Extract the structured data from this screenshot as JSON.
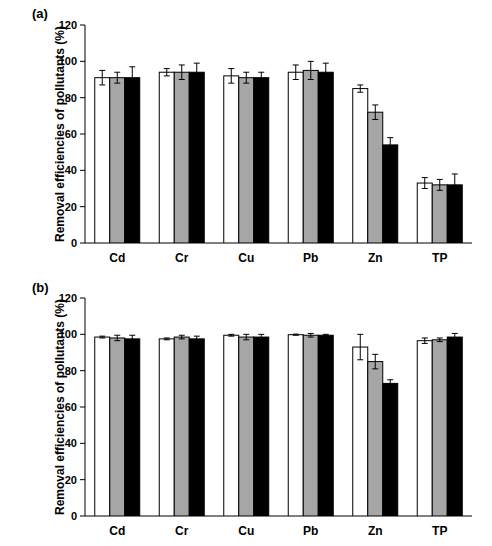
{
  "chart_data": [
    {
      "type": "bar",
      "title": "(a)",
      "y_label": "Removal efficiencies of pollutants (%)",
      "categories": [
        "Cd",
        "Cr",
        "Cu",
        "Pb",
        "Zn",
        "TP"
      ],
      "series": [
        {
          "color": "#ffffff",
          "values": [
            91,
            94,
            92,
            94,
            85,
            33
          ],
          "errors": [
            4,
            2,
            4,
            4,
            2,
            3
          ]
        },
        {
          "color": "#a6a6a6",
          "values": [
            91,
            94,
            91,
            95,
            72,
            32
          ],
          "errors": [
            3,
            4,
            3,
            5,
            4,
            3
          ]
        },
        {
          "color": "#000000",
          "values": [
            91,
            94,
            91,
            94,
            54,
            32
          ],
          "errors": [
            6,
            5,
            3,
            5,
            4,
            6
          ]
        }
      ],
      "ylim": [
        0,
        120
      ],
      "yticks": [
        0,
        20,
        40,
        60,
        80,
        100,
        120
      ],
      "grid": false
    },
    {
      "type": "bar",
      "title": "(b)",
      "y_label": "Removal efficiencies of pollutants (%)",
      "categories": [
        "Cd",
        "Cr",
        "Cu",
        "Pb",
        "Zn",
        "TP"
      ],
      "series": [
        {
          "color": "#ffffff",
          "values": [
            98.5,
            97.5,
            99.5,
            99.8,
            93,
            96.5
          ],
          "errors": [
            0.5,
            0.5,
            0.5,
            0.3,
            7,
            1.5
          ]
        },
        {
          "color": "#a6a6a6",
          "values": [
            98,
            98.5,
            98.5,
            99.5,
            85,
            97
          ],
          "errors": [
            1.5,
            1,
            1.5,
            1,
            4,
            1
          ]
        },
        {
          "color": "#000000",
          "values": [
            97.5,
            97.5,
            98.5,
            99.5,
            73,
            98.5
          ],
          "errors": [
            2,
            1.5,
            1.5,
            0.5,
            2,
            2
          ]
        }
      ],
      "ylim": [
        0,
        120
      ],
      "yticks": [
        0,
        20,
        40,
        60,
        80,
        100,
        120
      ],
      "grid": false
    }
  ]
}
